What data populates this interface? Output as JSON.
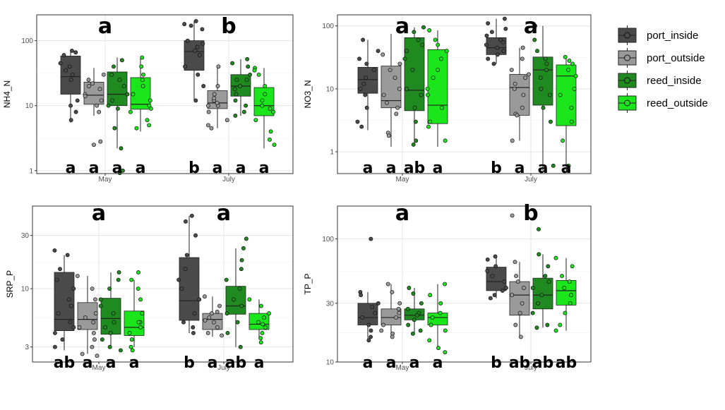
{
  "legend": {
    "entries": [
      {
        "name": "port_inside",
        "color": "#4a4a4a"
      },
      {
        "name": "port_outside",
        "color": "#9a9a9a"
      },
      {
        "name": "reed_inside",
        "color": "#1f8a1f"
      },
      {
        "name": "reed_outside",
        "color": "#1be61b"
      }
    ]
  },
  "chart_data": [
    {
      "type": "box",
      "ylabel": "NH4_N",
      "yscale": "log",
      "ylim": [
        0.9,
        250
      ],
      "yticks": [
        1,
        10,
        100
      ],
      "yticklabels": [
        "1",
        "10",
        "100"
      ],
      "categories": [
        "May",
        "July"
      ],
      "series_colors": [
        "#4a4a4a",
        "#9a9a9a",
        "#1f8a1f",
        "#1be61b"
      ],
      "top_letters": [
        "a",
        "b"
      ],
      "bottom_letters": [
        [
          "a",
          "a",
          "a",
          "a"
        ],
        [
          "b",
          "a",
          "a",
          "a"
        ]
      ],
      "boxes": [
        [
          {
            "low": 5.5,
            "q1": 15,
            "med": 28,
            "q3": 58,
            "high": 72
          },
          {
            "low": 7,
            "q1": 10.5,
            "med": 14.5,
            "q3": 23,
            "high": 38
          },
          {
            "low": 2.2,
            "q1": 10,
            "med": 15,
            "q3": 33,
            "high": 55
          },
          {
            "low": 4,
            "q1": 8.8,
            "med": 10.5,
            "q3": 27,
            "high": 55
          }
        ],
        [
          {
            "low": 12,
            "q1": 35,
            "med": 68,
            "q3": 100,
            "high": 200
          },
          {
            "low": 4.5,
            "q1": 9,
            "med": 11,
            "q3": 17,
            "high": 42
          },
          {
            "low": 7,
            "q1": 14,
            "med": 20,
            "q3": 30,
            "high": 52
          },
          {
            "low": 2.2,
            "q1": 7,
            "med": 10,
            "q3": 19,
            "high": 38
          }
        ]
      ],
      "points": [
        [
          [
            60,
            66,
            70,
            40,
            35,
            12,
            8,
            10,
            6,
            25,
            45,
            30
          ],
          [
            30,
            25,
            20,
            18,
            12,
            10,
            15,
            2.5,
            2.8,
            8,
            14,
            22
          ],
          [
            50,
            40,
            30,
            20,
            15,
            12,
            10,
            9,
            4.5,
            2.2,
            1,
            0.9,
            25
          ],
          [
            55,
            40,
            30,
            20,
            12,
            10,
            8,
            6,
            5,
            4.5,
            15,
            9,
            25
          ]
        ],
        [
          [
            200,
            180,
            170,
            150,
            100,
            90,
            80,
            60,
            40,
            30,
            20,
            12,
            70
          ],
          [
            40,
            20,
            15,
            12,
            10,
            8,
            6,
            5,
            4.5,
            10,
            11,
            13
          ],
          [
            52,
            45,
            40,
            30,
            25,
            20,
            18,
            15,
            12,
            10,
            8,
            7,
            25
          ],
          [
            38,
            35,
            30,
            20,
            15,
            12,
            10,
            8,
            6,
            4,
            3,
            2.5,
            9
          ]
        ]
      ]
    },
    {
      "type": "box",
      "ylabel": "NO3_N",
      "yscale": "log",
      "ylim": [
        0.45,
        150
      ],
      "yticks": [
        1,
        10,
        100
      ],
      "yticklabels": [
        "1",
        "10",
        "100"
      ],
      "categories": [
        "May",
        "July"
      ],
      "series_colors": [
        "#4a4a4a",
        "#9a9a9a",
        "#1f8a1f",
        "#1be61b"
      ],
      "top_letters": [
        "a",
        "a"
      ],
      "bottom_letters": [
        [
          "a",
          "a",
          "ab",
          "a"
        ],
        [
          "b",
          "a",
          "a",
          "a"
        ]
      ],
      "boxes": [
        [
          {
            "low": 2.2,
            "q1": 8.5,
            "med": 14,
            "q3": 22,
            "high": 60
          },
          {
            "low": 1.2,
            "q1": 5,
            "med": 6.5,
            "q3": 23,
            "high": 75
          },
          {
            "low": 1.3,
            "q1": 4.5,
            "med": 9.5,
            "q3": 65,
            "high": 95
          },
          {
            "low": 1.2,
            "q1": 2.8,
            "med": 5.5,
            "q3": 42,
            "high": 85
          }
        ],
        [
          {
            "low": 25,
            "q1": 35,
            "med": 45,
            "q3": 65,
            "high": 130
          },
          {
            "low": 1.5,
            "q1": 3.8,
            "med": 10.5,
            "q3": 17,
            "high": 45
          },
          {
            "low": 0.5,
            "q1": 5.5,
            "med": 20,
            "q3": 32,
            "high": 100
          },
          {
            "low": 0.5,
            "q1": 2.6,
            "med": 16,
            "q3": 24,
            "high": 32
          }
        ]
      ],
      "points": [
        [
          [
            60,
            40,
            30,
            25,
            20,
            15,
            12,
            10,
            8,
            5,
            3,
            2.5
          ],
          [
            35,
            25,
            20,
            15,
            10,
            8,
            6,
            5,
            4,
            2,
            1.8
          ],
          [
            95,
            80,
            60,
            50,
            40,
            30,
            20,
            10,
            8,
            5,
            3,
            1.5,
            1.3
          ],
          [
            85,
            60,
            50,
            40,
            30,
            20,
            15,
            10,
            8,
            5,
            3,
            2.5,
            1.5
          ]
        ],
        [
          [
            130,
            110,
            90,
            80,
            70,
            60,
            55,
            50,
            45,
            40,
            35,
            30,
            25
          ],
          [
            45,
            30,
            20,
            17,
            15,
            12,
            10,
            8,
            5,
            4,
            3.8,
            1.5
          ],
          [
            100,
            60,
            40,
            30,
            25,
            20,
            15,
            10,
            8,
            5,
            3,
            0.6
          ],
          [
            32,
            28,
            25,
            20,
            16,
            10,
            8,
            5,
            3,
            1.5,
            0.6,
            0.5
          ]
        ]
      ]
    },
    {
      "type": "box",
      "ylabel": "SRP_P",
      "yscale": "log",
      "ylim": [
        2.2,
        55
      ],
      "yticks": [
        3,
        10,
        30
      ],
      "yticklabels": [
        "3",
        "10",
        "30"
      ],
      "categories": [
        "May",
        "July"
      ],
      "series_colors": [
        "#4a4a4a",
        "#9a9a9a",
        "#1f8a1f",
        "#1be61b"
      ],
      "top_letters": [
        "a",
        "a"
      ],
      "bottom_letters": [
        [
          "ab",
          "a",
          "a",
          "a"
        ],
        [
          "b",
          "a",
          "ab",
          "a"
        ]
      ],
      "boxes": [
        [
          {
            "low": 2.8,
            "q1": 4.2,
            "med": 5.3,
            "q3": 14,
            "high": 20
          },
          {
            "low": 2.6,
            "q1": 4.3,
            "med": 5.3,
            "q3": 7.5,
            "high": 13
          },
          {
            "low": 3,
            "q1": 3.9,
            "med": 5.4,
            "q3": 8.2,
            "high": 14
          },
          {
            "low": 3,
            "q1": 3.8,
            "med": 4.5,
            "q3": 6.3,
            "high": 12
          }
        ],
        [
          {
            "low": 4,
            "q1": 5.2,
            "med": 7.8,
            "q3": 19,
            "high": 45
          },
          {
            "low": 3.7,
            "q1": 4.3,
            "med": 5.3,
            "q3": 6,
            "high": 8.5
          },
          {
            "low": 3,
            "q1": 5.9,
            "med": 7,
            "q3": 10.5,
            "high": 23
          },
          {
            "low": 3.5,
            "q1": 4.3,
            "med": 4.8,
            "q3": 6,
            "high": 8
          }
        ]
      ],
      "points": [
        [
          [
            22,
            20,
            15,
            12,
            10,
            8,
            6,
            5,
            4.5,
            4,
            3.5,
            3,
            7
          ],
          [
            13,
            10,
            8,
            6,
            5,
            4.5,
            4,
            3.5,
            3,
            2.6,
            2.5,
            5.5
          ],
          [
            14,
            12,
            10,
            8,
            6,
            5,
            4.5,
            4,
            3.5,
            3,
            2.8,
            7
          ],
          [
            14,
            12,
            10,
            8,
            6,
            5,
            4.5,
            4,
            3.5,
            3,
            2.8,
            5
          ]
        ],
        [
          [
            45,
            40,
            30,
            20,
            15,
            12,
            10,
            8,
            6,
            5,
            4.5,
            4
          ],
          [
            8.5,
            7,
            6,
            5.5,
            5,
            4.5,
            4,
            3.8,
            5.2,
            6.2
          ],
          [
            28,
            23,
            18,
            15,
            12,
            10,
            8,
            7,
            6,
            5,
            4,
            3
          ],
          [
            8,
            7,
            6,
            5.5,
            5,
            4.8,
            4.5,
            4,
            3.6,
            3.3
          ]
        ]
      ]
    },
    {
      "type": "box",
      "ylabel": "TP_P",
      "yscale": "log",
      "ylim": [
        10,
        185
      ],
      "yticks": [
        10,
        30,
        100
      ],
      "yticklabels": [
        "10",
        "30",
        "100"
      ],
      "categories": [
        "May",
        "July"
      ],
      "series_colors": [
        "#4a4a4a",
        "#9a9a9a",
        "#1f8a1f",
        "#1be61b"
      ],
      "top_letters": [
        "a",
        "b"
      ],
      "bottom_letters": [
        [
          "a",
          "a",
          "a",
          "a"
        ],
        [
          "b",
          "ab",
          "ab",
          "ab"
        ]
      ],
      "boxes": [
        [
          {
            "low": 15,
            "q1": 20,
            "med": 23,
            "q3": 30,
            "high": 37
          },
          {
            "low": 16,
            "q1": 20,
            "med": 23,
            "q3": 27,
            "high": 43
          },
          {
            "low": 17,
            "q1": 22,
            "med": 24,
            "q3": 27,
            "high": 40
          },
          {
            "low": 13,
            "q1": 20,
            "med": 23,
            "q3": 25,
            "high": 43
          }
        ],
        [
          {
            "low": 33,
            "q1": 38,
            "med": 45,
            "q3": 59,
            "high": 72
          },
          {
            "low": 16,
            "q1": 24,
            "med": 35,
            "q3": 45,
            "high": 65
          },
          {
            "low": 19,
            "q1": 27,
            "med": 35,
            "q3": 48,
            "high": 75
          },
          {
            "low": 18,
            "q1": 29,
            "med": 38,
            "q3": 46,
            "high": 70
          }
        ]
      ],
      "points": [
        [
          [
            100,
            37,
            35,
            30,
            28,
            25,
            23,
            20,
            18,
            16,
            15
          ],
          [
            43,
            37,
            30,
            27,
            25,
            23,
            20,
            18,
            17,
            16
          ],
          [
            40,
            36,
            30,
            27,
            25,
            24,
            22,
            20,
            18,
            17
          ],
          [
            43,
            35,
            30,
            25,
            23,
            20,
            18,
            15,
            13,
            12
          ]
        ],
        [
          [
            72,
            68,
            60,
            55,
            50,
            45,
            40,
            38,
            35,
            33
          ],
          [
            155,
            65,
            50,
            45,
            40,
            35,
            30,
            25,
            20,
            16
          ],
          [
            120,
            75,
            60,
            50,
            45,
            40,
            35,
            30,
            25,
            20,
            19
          ],
          [
            70,
            60,
            50,
            45,
            40,
            35,
            30,
            25,
            20,
            18
          ]
        ]
      ]
    }
  ]
}
